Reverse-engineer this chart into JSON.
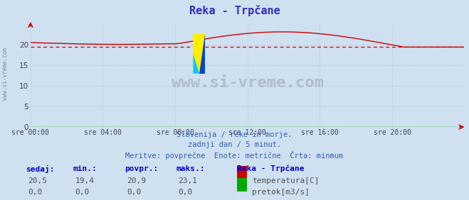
{
  "title": "Reka - Trpčane",
  "background_color": "#cfe0f0",
  "plot_bg_color": "#cfe0f0",
  "grid_color": "#b0c4d8",
  "x_ticks_labels": [
    "sre 00:00",
    "sre 04:00",
    "sre 08:00",
    "sre 12:00",
    "sre 16:00",
    "sre 20:00"
  ],
  "x_ticks_pos": [
    0,
    288,
    576,
    864,
    1152,
    1440
  ],
  "x_max": 1727,
  "ylim": [
    0,
    25
  ],
  "y_ticks": [
    0,
    5,
    10,
    15,
    20
  ],
  "temp_color": "#cc0000",
  "pretok_color": "#00aa00",
  "min_line_color": "#cc0000",
  "min_val": 19.4,
  "subtitle1": "Slovenija / reke in morje.",
  "subtitle2": "zadnji dan / 5 minut.",
  "subtitle3": "Meritve: povprečne  Enote: metrične  Črta: minmum",
  "label_sedaj": "sedaj:",
  "label_min": "min.:",
  "label_povpr": "povpr.:",
  "label_maks": "maks.:",
  "label_header": "Reka - Trpčane",
  "row1_vals": [
    "20,5",
    "19,4",
    "20,9",
    "23,1"
  ],
  "row2_vals": [
    "0,0",
    "0,0",
    "0,0",
    "0,0"
  ],
  "legend_temp": "temperatura[C]",
  "legend_pretok": "pretok[m3/s]",
  "watermark": "www.si-vreme.com",
  "side_label": "www.si-vreme.com",
  "title_color": "#3030bb",
  "subtitle_color": "#3060aa",
  "table_header_color": "#0000cc",
  "table_val_color": "#505050",
  "watermark_color": "#b0bcd0",
  "axis_label_color": "#404060",
  "arrow_color": "#cc0000",
  "icon_yellow": "#ffee00",
  "icon_blue": "#0044cc",
  "icon_cyan": "#00ccff"
}
